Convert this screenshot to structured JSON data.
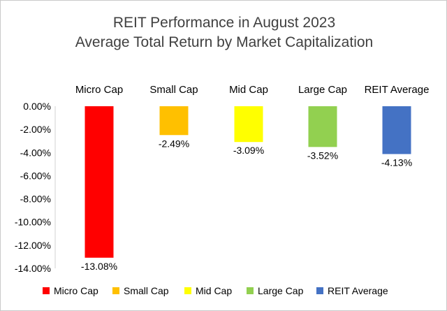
{
  "chart_data": {
    "type": "bar",
    "title": "REIT Performance in August 2023",
    "subtitle": "Average Total Return by Market Capitalization",
    "categories": [
      "Micro Cap",
      "Small Cap",
      "Mid Cap",
      "Large Cap",
      "REIT Average"
    ],
    "values": [
      -13.08,
      -2.49,
      -3.09,
      -3.52,
      -4.13
    ],
    "data_labels": [
      "-13.08%",
      "-2.49%",
      "-3.09%",
      "-3.52%",
      "-4.13%"
    ],
    "colors": [
      "#ff0000",
      "#ffc000",
      "#ffff00",
      "#92d050",
      "#4472c4"
    ],
    "ylim": [
      -14,
      0
    ],
    "y_ticks": [
      "0.00%",
      "-2.00%",
      "-4.00%",
      "-6.00%",
      "-8.00%",
      "-10.00%",
      "-12.00%",
      "-14.00%"
    ],
    "y_tick_values": [
      0,
      -2,
      -4,
      -6,
      -8,
      -10,
      -12,
      -14
    ],
    "grid": false,
    "legend_position": "bottom",
    "legend": [
      "Micro Cap",
      "Small Cap",
      "Mid Cap",
      "Large Cap",
      "REIT Average"
    ]
  }
}
